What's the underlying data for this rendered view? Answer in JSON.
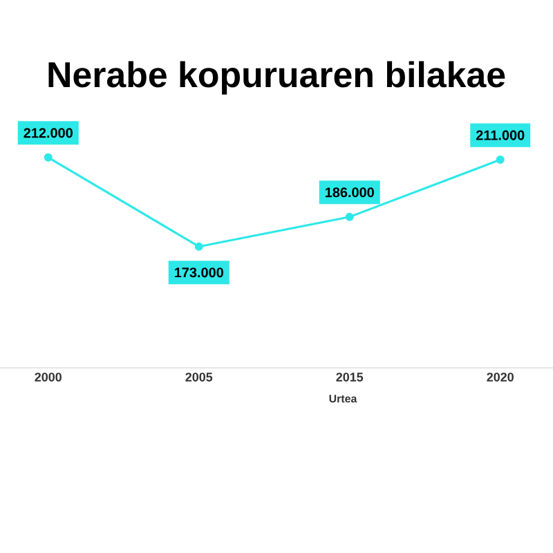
{
  "chart_data": {
    "type": "line",
    "title": "Nerabe kopuruaren bilakae",
    "xlabel": "Urtea",
    "categories": [
      "2000",
      "2005",
      "2015",
      "2020"
    ],
    "values": [
      212000,
      173000,
      186000,
      211000
    ],
    "value_labels": [
      "212.000",
      "173.000",
      "186.000",
      "211.000"
    ],
    "color": "#2ee8e8",
    "marker": "circle",
    "line_style": "solid",
    "tick_labels": "x"
  }
}
